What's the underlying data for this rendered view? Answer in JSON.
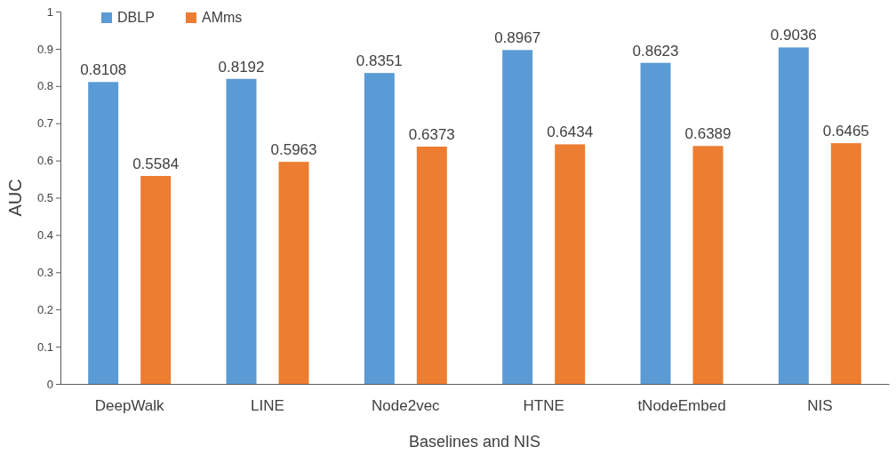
{
  "chart_data": {
    "type": "bar",
    "xlabel": "Baselines and NIS",
    "ylabel": "AUC",
    "categories": [
      "DeepWalk",
      "LINE",
      "Node2vec",
      "HTNE",
      "tNodeEmbed",
      "NIS"
    ],
    "series": [
      {
        "name": "DBLP",
        "color": "#5b9bd5",
        "values": [
          0.8108,
          0.8192,
          0.8351,
          0.8967,
          0.8623,
          0.9036
        ]
      },
      {
        "name": "AMms",
        "color": "#ed7d31",
        "values": [
          0.5584,
          0.5963,
          0.6373,
          0.6434,
          0.6389,
          0.6465
        ]
      }
    ],
    "ylim": [
      0,
      1
    ],
    "yticks": [
      0,
      0.1,
      0.2,
      0.3,
      0.4,
      0.5,
      0.6,
      0.7,
      0.8,
      0.9,
      1
    ],
    "data_labels": true,
    "legend": "top left",
    "grid": false
  }
}
